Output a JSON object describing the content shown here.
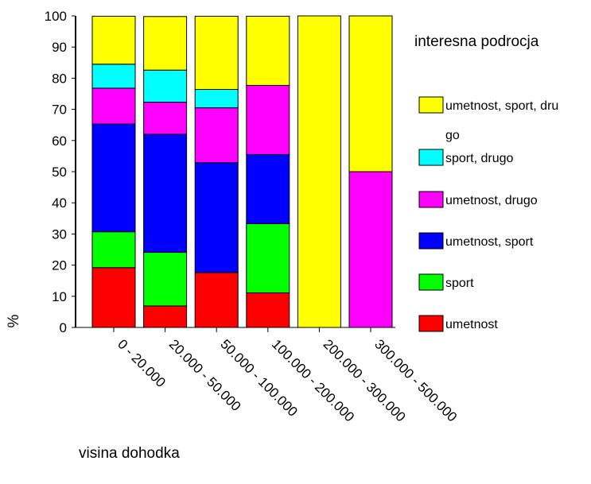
{
  "chart_data": {
    "type": "bar",
    "stacked": true,
    "percent_stacked": true,
    "categories": [
      "0 - 20.000",
      "20.000 - 50.000",
      "50.000 - 100.000",
      "100.000 - 200.000",
      "200.000 - 300.000",
      "300.000 - 500.000"
    ],
    "series": [
      {
        "name": "umetnost",
        "color": "#ff0000",
        "values": [
          19.2,
          6.9,
          17.6,
          11.1,
          0,
          0
        ]
      },
      {
        "name": "sport",
        "color": "#00ff00",
        "values": [
          11.5,
          17.2,
          0,
          22.2,
          0,
          0
        ]
      },
      {
        "name": "umetnost, sport",
        "color": "#0000ff",
        "values": [
          34.6,
          37.9,
          35.3,
          22.2,
          0,
          0
        ]
      },
      {
        "name": "umetnost, drugo",
        "color": "#ff00ff",
        "values": [
          11.5,
          10.3,
          17.6,
          22.2,
          0,
          50
        ]
      },
      {
        "name": "sport, drugo",
        "color": "#00ffff",
        "values": [
          7.7,
          10.3,
          5.9,
          0,
          0,
          0
        ]
      },
      {
        "name": "umetnost, sport, drugo",
        "color": "#ffff00",
        "values": [
          15.4,
          17.2,
          23.5,
          22.2,
          100,
          50
        ]
      }
    ],
    "legend_title": "interesna podrocja",
    "legend_position": "right",
    "legend_labels": [
      "umetnost, sport, dru go",
      "sport, drugo",
      "umetnost, drugo",
      "umetnost, sport",
      "sport",
      "umetnost"
    ],
    "ylabel": "%",
    "xlabel": "visina dohodka",
    "ylim": [
      0,
      100
    ],
    "yticks": [
      0,
      10,
      20,
      30,
      40,
      50,
      60,
      70,
      80,
      90,
      100
    ],
    "grid": false
  }
}
